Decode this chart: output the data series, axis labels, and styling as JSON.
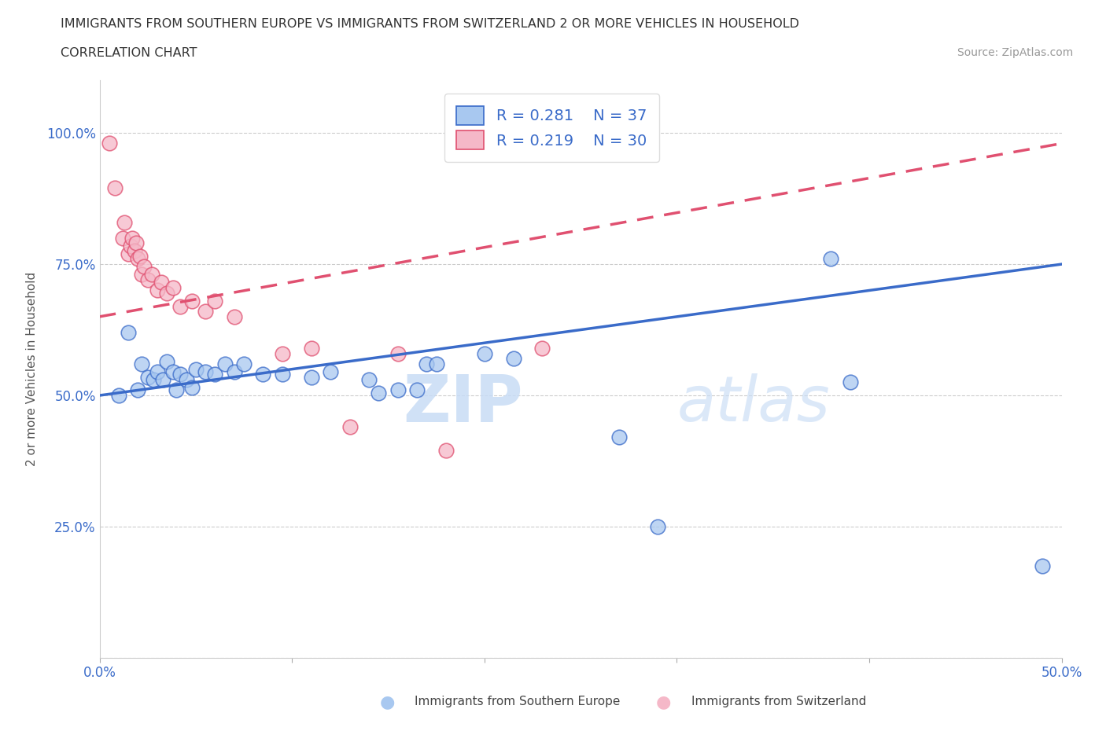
{
  "title": "IMMIGRANTS FROM SOUTHERN EUROPE VS IMMIGRANTS FROM SWITZERLAND 2 OR MORE VEHICLES IN HOUSEHOLD",
  "subtitle": "CORRELATION CHART",
  "source": "Source: ZipAtlas.com",
  "xlabel_blue": "Immigrants from Southern Europe",
  "xlabel_pink": "Immigrants from Switzerland",
  "ylabel": "2 or more Vehicles in Household",
  "xlim": [
    0.0,
    0.5
  ],
  "ylim": [
    0.0,
    1.1
  ],
  "blue_R": 0.281,
  "blue_N": 37,
  "pink_R": 0.219,
  "pink_N": 30,
  "blue_color": "#A8C8F0",
  "pink_color": "#F5B8C8",
  "blue_line_color": "#3A6BC9",
  "pink_line_color": "#E05070",
  "blue_scatter": [
    [
      0.01,
      0.5
    ],
    [
      0.015,
      0.62
    ],
    [
      0.02,
      0.51
    ],
    [
      0.022,
      0.56
    ],
    [
      0.025,
      0.535
    ],
    [
      0.028,
      0.53
    ],
    [
      0.03,
      0.545
    ],
    [
      0.033,
      0.53
    ],
    [
      0.035,
      0.565
    ],
    [
      0.038,
      0.545
    ],
    [
      0.04,
      0.51
    ],
    [
      0.042,
      0.54
    ],
    [
      0.045,
      0.53
    ],
    [
      0.048,
      0.515
    ],
    [
      0.05,
      0.55
    ],
    [
      0.055,
      0.545
    ],
    [
      0.06,
      0.54
    ],
    [
      0.065,
      0.56
    ],
    [
      0.07,
      0.545
    ],
    [
      0.075,
      0.56
    ],
    [
      0.085,
      0.54
    ],
    [
      0.095,
      0.54
    ],
    [
      0.11,
      0.535
    ],
    [
      0.12,
      0.545
    ],
    [
      0.14,
      0.53
    ],
    [
      0.145,
      0.505
    ],
    [
      0.155,
      0.51
    ],
    [
      0.165,
      0.51
    ],
    [
      0.17,
      0.56
    ],
    [
      0.175,
      0.56
    ],
    [
      0.2,
      0.58
    ],
    [
      0.215,
      0.57
    ],
    [
      0.27,
      0.42
    ],
    [
      0.29,
      0.25
    ],
    [
      0.38,
      0.76
    ],
    [
      0.39,
      0.525
    ],
    [
      0.49,
      0.175
    ]
  ],
  "pink_scatter": [
    [
      0.005,
      0.98
    ],
    [
      0.008,
      0.895
    ],
    [
      0.012,
      0.8
    ],
    [
      0.013,
      0.83
    ],
    [
      0.015,
      0.77
    ],
    [
      0.016,
      0.785
    ],
    [
      0.017,
      0.8
    ],
    [
      0.018,
      0.775
    ],
    [
      0.019,
      0.79
    ],
    [
      0.02,
      0.76
    ],
    [
      0.021,
      0.765
    ],
    [
      0.022,
      0.73
    ],
    [
      0.023,
      0.745
    ],
    [
      0.025,
      0.72
    ],
    [
      0.027,
      0.73
    ],
    [
      0.03,
      0.7
    ],
    [
      0.032,
      0.715
    ],
    [
      0.035,
      0.695
    ],
    [
      0.038,
      0.705
    ],
    [
      0.042,
      0.67
    ],
    [
      0.048,
      0.68
    ],
    [
      0.055,
      0.66
    ],
    [
      0.06,
      0.68
    ],
    [
      0.07,
      0.65
    ],
    [
      0.095,
      0.58
    ],
    [
      0.11,
      0.59
    ],
    [
      0.13,
      0.44
    ],
    [
      0.155,
      0.58
    ],
    [
      0.18,
      0.395
    ],
    [
      0.23,
      0.59
    ]
  ],
  "blue_line": [
    [
      0.0,
      0.5
    ],
    [
      0.5,
      0.75
    ]
  ],
  "pink_line": [
    [
      0.0,
      0.65
    ],
    [
      0.5,
      0.98
    ]
  ],
  "yticks": [
    0.0,
    0.25,
    0.5,
    0.75,
    1.0
  ],
  "ytick_labels": [
    "",
    "25.0%",
    "50.0%",
    "75.0%",
    "100.0%"
  ],
  "xticks": [
    0.0,
    0.1,
    0.2,
    0.3,
    0.4,
    0.5
  ],
  "xtick_labels": [
    "0.0%",
    "",
    "",
    "",
    "",
    "50.0%"
  ],
  "watermark_zip": "ZIP",
  "watermark_atlas": "atlas",
  "background_color": "#FFFFFF",
  "grid_color": "#CCCCCC"
}
